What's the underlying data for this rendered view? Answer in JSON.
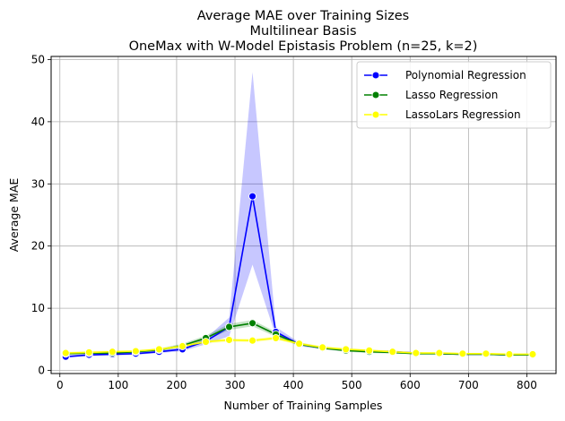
{
  "chart_data": {
    "type": "line",
    "title_lines": [
      "Average MAE over Training Sizes",
      "Multilinear Basis",
      "OneMax with W-Model Epistasis Problem (n=25, k=2)"
    ],
    "xlabel": "Number of Training Samples",
    "ylabel": "Average MAE",
    "xlim": [
      -15,
      850
    ],
    "ylim": [
      -0.5,
      50.5
    ],
    "xticks": [
      0,
      100,
      200,
      300,
      400,
      500,
      600,
      700,
      800
    ],
    "yticks": [
      0,
      10,
      20,
      30,
      40,
      50
    ],
    "grid": true,
    "legend_position": "upper-right",
    "x": [
      10,
      50,
      90,
      130,
      170,
      210,
      250,
      290,
      330,
      370,
      410,
      450,
      490,
      530,
      570,
      610,
      650,
      690,
      730,
      770,
      810
    ],
    "series": [
      {
        "name": "Polynomial Regression",
        "color": "#0000ff",
        "values": [
          2.2,
          2.5,
          2.6,
          2.7,
          3.0,
          3.4,
          4.7,
          7.0,
          28.0,
          6.2,
          4.2,
          3.6,
          3.3,
          3.1,
          3.0,
          2.8,
          2.7,
          2.6,
          2.6,
          2.5,
          2.5
        ],
        "band_low": [
          2.0,
          2.3,
          2.4,
          2.5,
          2.8,
          3.1,
          4.2,
          5.5,
          17.0,
          5.5,
          3.9,
          3.4,
          3.1,
          2.9,
          2.8,
          2.7,
          2.6,
          2.5,
          2.5,
          2.4,
          2.4
        ],
        "band_high": [
          2.4,
          2.7,
          2.8,
          2.9,
          3.2,
          3.7,
          5.2,
          8.5,
          48.0,
          7.0,
          4.5,
          3.8,
          3.5,
          3.3,
          3.2,
          2.9,
          2.8,
          2.7,
          2.7,
          2.6,
          2.6
        ]
      },
      {
        "name": "Lasso Regression",
        "color": "#008000",
        "values": [
          2.7,
          2.8,
          2.8,
          3.0,
          3.3,
          4.0,
          5.2,
          7.0,
          7.6,
          5.8,
          4.2,
          3.6,
          3.2,
          3.0,
          2.9,
          2.7,
          2.7,
          2.6,
          2.6,
          2.5,
          2.5
        ],
        "band_low": [
          2.5,
          2.6,
          2.6,
          2.8,
          3.1,
          3.7,
          4.8,
          6.5,
          7.1,
          5.4,
          4.0,
          3.4,
          3.0,
          2.8,
          2.7,
          2.6,
          2.6,
          2.5,
          2.5,
          2.4,
          2.4
        ],
        "band_high": [
          2.9,
          3.0,
          3.0,
          3.2,
          3.5,
          4.3,
          5.6,
          7.5,
          8.1,
          6.2,
          4.4,
          3.8,
          3.4,
          3.2,
          3.1,
          2.8,
          2.8,
          2.7,
          2.7,
          2.6,
          2.6
        ]
      },
      {
        "name": "LassoLars Regression",
        "color": "#ffff00",
        "values": [
          2.8,
          2.9,
          3.0,
          3.1,
          3.4,
          3.9,
          4.6,
          4.9,
          4.8,
          5.2,
          4.3,
          3.7,
          3.4,
          3.2,
          3.0,
          2.8,
          2.8,
          2.7,
          2.7,
          2.6,
          2.6
        ],
        "band_low": [
          2.6,
          2.7,
          2.8,
          2.9,
          3.2,
          3.7,
          4.3,
          4.6,
          4.5,
          4.9,
          4.1,
          3.5,
          3.2,
          3.0,
          2.8,
          2.7,
          2.7,
          2.6,
          2.6,
          2.5,
          2.5
        ],
        "band_high": [
          3.0,
          3.1,
          3.2,
          3.3,
          3.6,
          4.1,
          4.9,
          5.2,
          5.1,
          5.5,
          4.5,
          3.9,
          3.6,
          3.4,
          3.2,
          2.9,
          2.9,
          2.8,
          2.8,
          2.7,
          2.7
        ]
      }
    ]
  }
}
